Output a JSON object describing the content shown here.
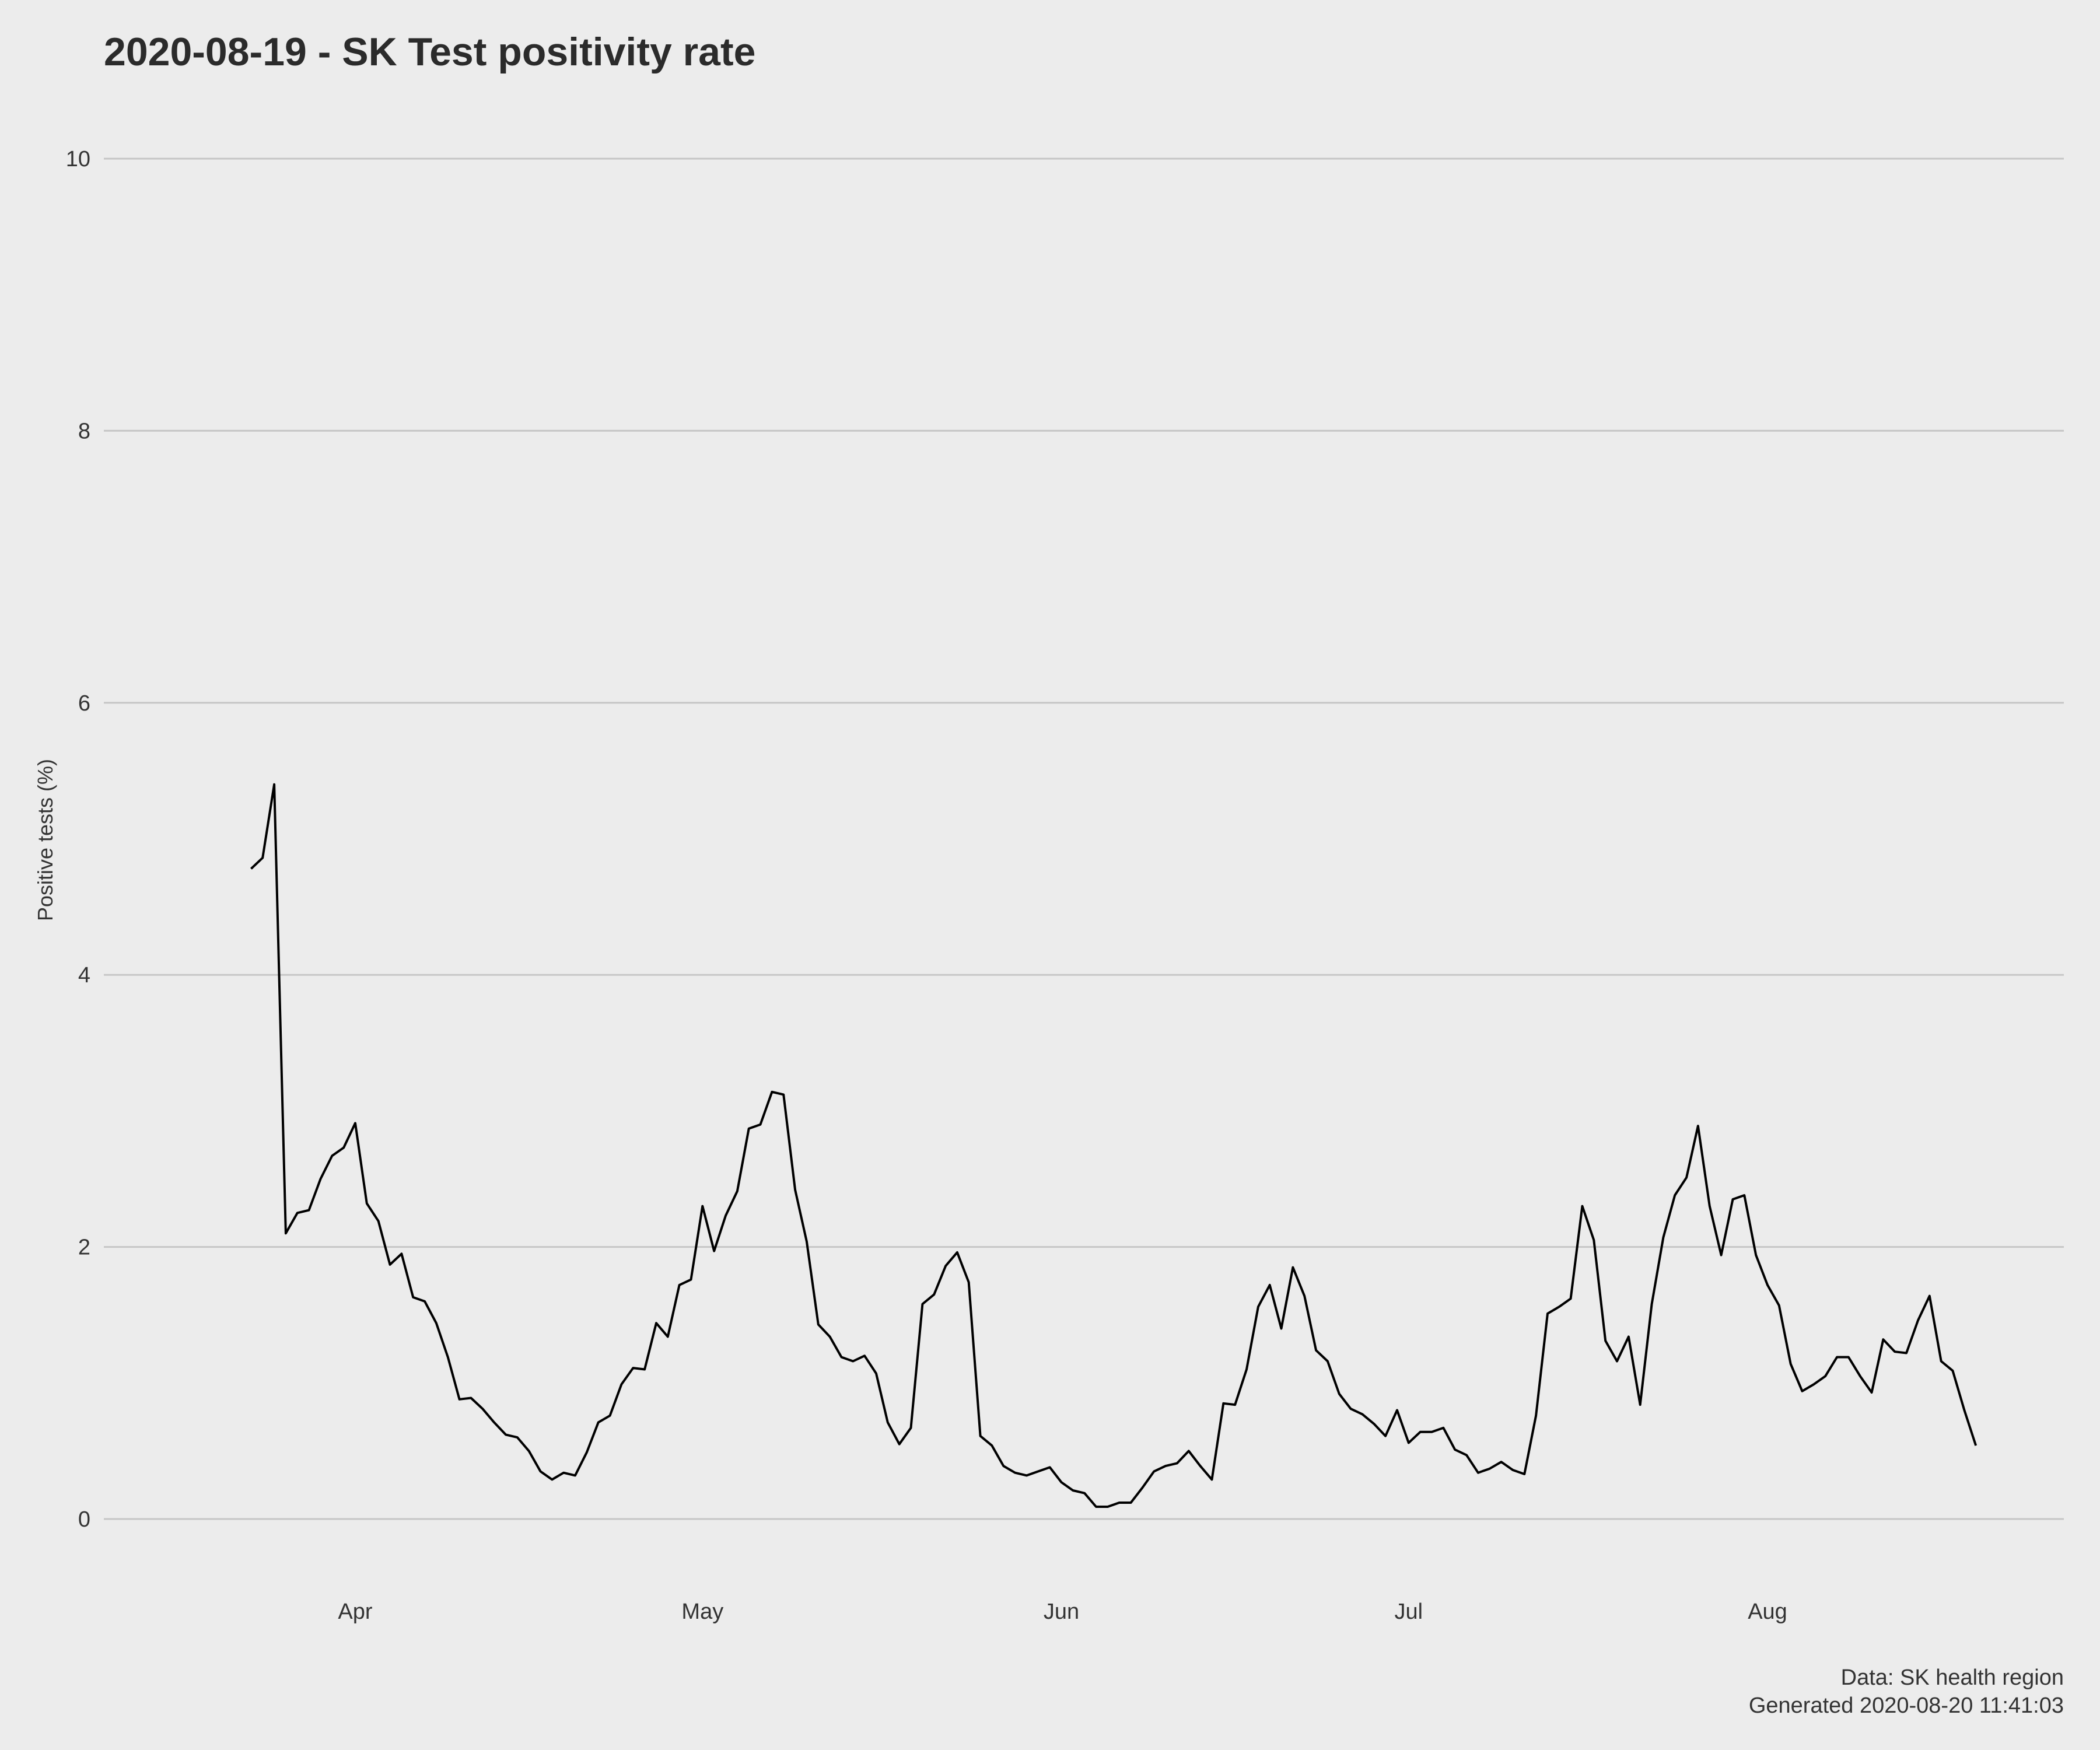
{
  "title": "2020-08-19 - SK Test positivity rate",
  "caption_line1": "Data: SK health region",
  "caption_line2": "Generated 2020-08-20 11:41:03",
  "chart_data": {
    "type": "line",
    "title": "2020-08-19 - SK Test positivity rate",
    "xlabel": "",
    "ylabel": "Positive tests (%)",
    "ylim": [
      0,
      10
    ],
    "yticks": [
      0,
      2,
      4,
      6,
      8,
      10
    ],
    "xticks": [
      {
        "date": "2020-04-01",
        "label": "Apr"
      },
      {
        "date": "2020-05-01",
        "label": "May"
      },
      {
        "date": "2020-06-01",
        "label": "Jun"
      },
      {
        "date": "2020-07-01",
        "label": "Jul"
      },
      {
        "date": "2020-08-01",
        "label": "Aug"
      }
    ],
    "grid": "horizontal major gridlines",
    "legend": "none",
    "line_color": "#000000",
    "series": [
      {
        "x": [
          "2020-03-23",
          "2020-03-24",
          "2020-03-25",
          "2020-03-26",
          "2020-03-27",
          "2020-03-28",
          "2020-03-29",
          "2020-03-30",
          "2020-03-31",
          "2020-04-01",
          "2020-04-02",
          "2020-04-03",
          "2020-04-04",
          "2020-04-05",
          "2020-04-06",
          "2020-04-07",
          "2020-04-08",
          "2020-04-09",
          "2020-04-10",
          "2020-04-11",
          "2020-04-12",
          "2020-04-13",
          "2020-04-14",
          "2020-04-15",
          "2020-04-16",
          "2020-04-17",
          "2020-04-18",
          "2020-04-19",
          "2020-04-20",
          "2020-04-21",
          "2020-04-22",
          "2020-04-23",
          "2020-04-24",
          "2020-04-25",
          "2020-04-26",
          "2020-04-27",
          "2020-04-28",
          "2020-04-29",
          "2020-04-30",
          "2020-05-01",
          "2020-05-02",
          "2020-05-03",
          "2020-05-04",
          "2020-05-05",
          "2020-05-06",
          "2020-05-07",
          "2020-05-08",
          "2020-05-09",
          "2020-05-10",
          "2020-05-11",
          "2020-05-12",
          "2020-05-13",
          "2020-05-14",
          "2020-05-15",
          "2020-05-16",
          "2020-05-17",
          "2020-05-18",
          "2020-05-19",
          "2020-05-20",
          "2020-05-21",
          "2020-05-22",
          "2020-05-23",
          "2020-05-24",
          "2020-05-25",
          "2020-05-26",
          "2020-05-27",
          "2020-05-28",
          "2020-05-29",
          "2020-05-30",
          "2020-05-31",
          "2020-06-01",
          "2020-06-02",
          "2020-06-03",
          "2020-06-04",
          "2020-06-05",
          "2020-06-06",
          "2020-06-07",
          "2020-06-08",
          "2020-06-09",
          "2020-06-10",
          "2020-06-11",
          "2020-06-12",
          "2020-06-13",
          "2020-06-14",
          "2020-06-15",
          "2020-06-16",
          "2020-06-17",
          "2020-06-18",
          "2020-06-19",
          "2020-06-20",
          "2020-06-21",
          "2020-06-22",
          "2020-06-23",
          "2020-06-24",
          "2020-06-25",
          "2020-06-26",
          "2020-06-27",
          "2020-06-28",
          "2020-06-29",
          "2020-06-30",
          "2020-07-01",
          "2020-07-02",
          "2020-07-03",
          "2020-07-04",
          "2020-07-05",
          "2020-07-06",
          "2020-07-07",
          "2020-07-08",
          "2020-07-09",
          "2020-07-10",
          "2020-07-11",
          "2020-07-12",
          "2020-07-13",
          "2020-07-14",
          "2020-07-15",
          "2020-07-16",
          "2020-07-17",
          "2020-07-18",
          "2020-07-19",
          "2020-07-20",
          "2020-07-21",
          "2020-07-22",
          "2020-07-23",
          "2020-07-24",
          "2020-07-25",
          "2020-07-26",
          "2020-07-27",
          "2020-07-28",
          "2020-07-29",
          "2020-07-30",
          "2020-07-31",
          "2020-08-01",
          "2020-08-02",
          "2020-08-03",
          "2020-08-04",
          "2020-08-05",
          "2020-08-06",
          "2020-08-07",
          "2020-08-08",
          "2020-08-09",
          "2020-08-10",
          "2020-08-11",
          "2020-08-12",
          "2020-08-13",
          "2020-08-14",
          "2020-08-15",
          "2020-08-16",
          "2020-08-17",
          "2020-08-18",
          "2020-08-19"
        ],
        "values": [
          4.78,
          4.86,
          5.4,
          2.1,
          2.25,
          2.27,
          2.5,
          2.67,
          2.73,
          2.91,
          2.32,
          2.19,
          1.87,
          1.95,
          1.63,
          1.6,
          1.44,
          1.19,
          0.88,
          0.89,
          0.81,
          0.71,
          0.62,
          0.6,
          0.5,
          0.35,
          0.29,
          0.34,
          0.32,
          0.49,
          0.71,
          0.76,
          0.99,
          1.11,
          1.1,
          1.44,
          1.34,
          1.72,
          1.76,
          2.3,
          1.97,
          2.23,
          2.41,
          2.87,
          2.9,
          3.14,
          3.12,
          2.42,
          2.04,
          1.43,
          1.34,
          1.19,
          1.16,
          1.2,
          1.07,
          0.71,
          0.55,
          0.67,
          1.58,
          1.65,
          1.86,
          1.96,
          1.74,
          0.61,
          0.54,
          0.39,
          0.34,
          0.32,
          0.35,
          0.38,
          0.27,
          0.21,
          0.19,
          0.09,
          0.09,
          0.12,
          0.12,
          0.23,
          0.35,
          0.39,
          0.41,
          0.5,
          0.39,
          0.29,
          0.85,
          0.84,
          1.1,
          1.56,
          1.72,
          1.4,
          1.85,
          1.64,
          1.24,
          1.16,
          0.92,
          0.81,
          0.77,
          0.7,
          0.61,
          0.8,
          0.56,
          0.64,
          0.64,
          0.67,
          0.51,
          0.47,
          0.34,
          0.37,
          0.42,
          0.36,
          0.33,
          0.76,
          1.51,
          1.56,
          1.62,
          2.3,
          2.05,
          1.31,
          1.16,
          1.34,
          0.84,
          1.58,
          2.07,
          2.38,
          2.51,
          2.89,
          2.3,
          1.94,
          2.35,
          2.38,
          1.94,
          1.72,
          1.57,
          1.14,
          0.94,
          0.99,
          1.05,
          1.19,
          1.19,
          1.05,
          0.93,
          1.32,
          1.23,
          1.22,
          1.46,
          1.64,
          1.16,
          1.09,
          0.8,
          0.54
        ]
      }
    ]
  }
}
